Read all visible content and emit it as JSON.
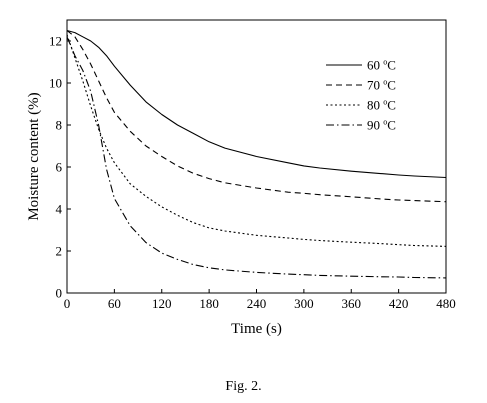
{
  "chart_data": {
    "type": "line",
    "xlabel": "Time (s)",
    "ylabel": "Moisture content (%)",
    "xlim": [
      0,
      480
    ],
    "ylim": [
      0,
      13
    ],
    "xticks": [
      0,
      60,
      120,
      180,
      240,
      300,
      360,
      420,
      480
    ],
    "yticks": [
      0,
      2,
      4,
      6,
      8,
      10,
      12
    ],
    "grid": false,
    "legend_position": "top-right",
    "x": [
      0,
      10,
      20,
      30,
      40,
      50,
      60,
      80,
      100,
      120,
      140,
      160,
      180,
      200,
      240,
      280,
      300,
      320,
      360,
      400,
      420,
      440,
      480
    ],
    "series": [
      {
        "name": "60 °C",
        "name_parts": [
          "60 ",
          "o",
          "C"
        ],
        "dash": "none",
        "values": [
          12.5,
          12.4,
          12.2,
          12.0,
          11.7,
          11.3,
          10.8,
          9.9,
          9.1,
          8.5,
          8.0,
          7.6,
          7.2,
          6.9,
          6.5,
          6.2,
          6.05,
          5.95,
          5.8,
          5.68,
          5.62,
          5.57,
          5.5
        ]
      },
      {
        "name": "70 °C",
        "name_parts": [
          "70 ",
          "o",
          "C"
        ],
        "dash": "6,4",
        "values": [
          12.5,
          12.2,
          11.6,
          10.9,
          10.1,
          9.3,
          8.6,
          7.7,
          7.0,
          6.5,
          6.05,
          5.7,
          5.45,
          5.25,
          5.0,
          4.8,
          4.75,
          4.68,
          4.58,
          4.47,
          4.43,
          4.4,
          4.35
        ]
      },
      {
        "name": "80 °C",
        "name_parts": [
          "80 ",
          "o",
          "C"
        ],
        "dash": "2,2.5",
        "values": [
          12.3,
          11.2,
          10.1,
          8.9,
          7.8,
          6.9,
          6.2,
          5.2,
          4.6,
          4.1,
          3.7,
          3.35,
          3.1,
          2.95,
          2.75,
          2.62,
          2.55,
          2.5,
          2.42,
          2.35,
          2.3,
          2.26,
          2.22
        ]
      },
      {
        "name": "90 °C",
        "name_parts": [
          "90 ",
          "o",
          "C"
        ],
        "dash": "8,3,1.5,3",
        "values": [
          12.2,
          11.3,
          10.6,
          9.6,
          8.0,
          5.9,
          4.5,
          3.2,
          2.4,
          1.9,
          1.6,
          1.35,
          1.2,
          1.1,
          0.98,
          0.9,
          0.87,
          0.84,
          0.8,
          0.77,
          0.76,
          0.74,
          0.72
        ]
      }
    ]
  },
  "caption": "Fig. 2."
}
